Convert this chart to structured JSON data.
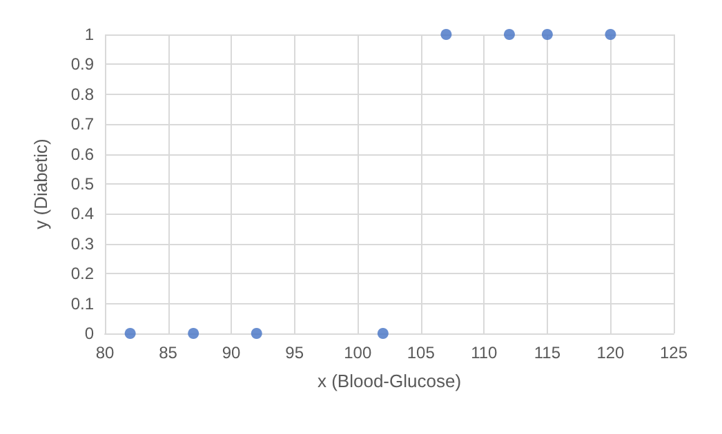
{
  "chart_data": {
    "type": "scatter",
    "xlabel": "x (Blood-Glucose)",
    "ylabel": "y (Diabetic)",
    "x": [
      82,
      87,
      92,
      102,
      107,
      112,
      115,
      120
    ],
    "values": [
      0,
      0,
      0,
      0,
      1,
      1,
      1,
      1
    ],
    "color": "#4472c4",
    "xlim": [
      80,
      125
    ],
    "xticks": [
      80,
      85,
      90,
      95,
      100,
      105,
      110,
      115,
      120,
      125
    ],
    "ylim": [
      0,
      1
    ],
    "yticks": [
      0,
      0.1,
      0.2,
      0.3,
      0.4,
      0.5,
      0.6,
      0.7,
      0.8,
      0.9,
      1
    ],
    "grid": true,
    "marker": "circle"
  }
}
